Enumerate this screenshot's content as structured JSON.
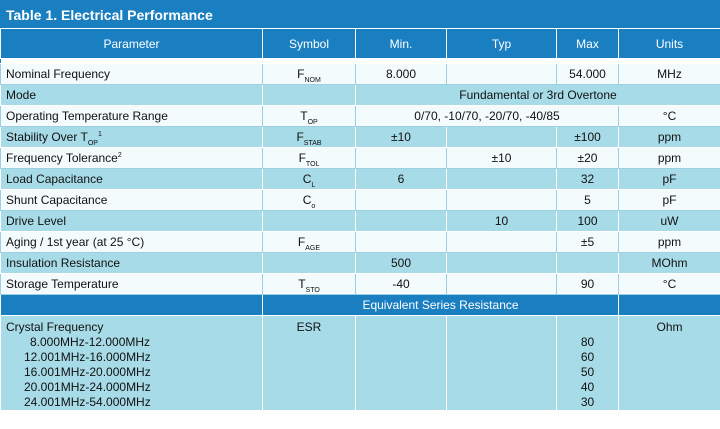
{
  "title": "Table 1. Electrical Performance",
  "headers": [
    "Parameter",
    "Symbol",
    "Min.",
    "Typ",
    "Max",
    "Units"
  ],
  "rows": [
    {
      "param": "Nominal Frequency",
      "sym_main": "F",
      "sym_sub": "NOM",
      "min": "8.000",
      "typ": "",
      "max": "54.000",
      "units": "MHz"
    },
    {
      "param": "Mode",
      "span": "Fundamental or 3rd Overtone"
    },
    {
      "param": "Operating Temperature Range",
      "sym_main": "T",
      "sym_sub": "OP",
      "span": "0/70, -10/70, -20/70, -40/85",
      "units": "°C"
    },
    {
      "param": "Stability Over T",
      "param_sub": "OP",
      "param_sup": "1",
      "sym_main": "F",
      "sym_sub": "STAB",
      "min": "±10",
      "typ": "",
      "max": "±100",
      "units": "ppm"
    },
    {
      "param": "Frequency Tolerance",
      "param_sup": "2",
      "sym_main": "F",
      "sym_sub": "TOL",
      "min": "",
      "typ": "±10",
      "max": "±20",
      "units": "ppm"
    },
    {
      "param": "Load Capacitance",
      "sym_main": "C",
      "sym_sub": "L",
      "min": "6",
      "typ": "",
      "max": "32",
      "units": "pF"
    },
    {
      "param": "Shunt Capacitance",
      "sym_main": "C",
      "sym_sub": "o",
      "min": "",
      "typ": "",
      "max": "5",
      "units": "pF"
    },
    {
      "param": "Drive Level",
      "sym_main": "",
      "sym_sub": "",
      "min": "",
      "typ": "10",
      "max": "100",
      "units": "uW"
    },
    {
      "param": "Aging / 1st year (at 25 °C)",
      "sym_main": "F",
      "sym_sub": "AGE",
      "min": "",
      "typ": "",
      "max": "±5",
      "units": "ppm"
    },
    {
      "param": "Insulation Resistance",
      "sym_main": "",
      "sym_sub": "",
      "min": "500",
      "typ": "",
      "max": "",
      "units": "MOhm"
    },
    {
      "param": "Storage Temperature",
      "sym_main": "T",
      "sym_sub": "STO",
      "min": "-40",
      "typ": "",
      "max": "90",
      "units": "°C"
    }
  ],
  "esr": {
    "section_title": "Equivalent Series Resistance",
    "param_label": "Crystal Frequency",
    "symbol": "ESR",
    "units": "Ohm",
    "ranges": [
      "8.000MHz-12.000MHz",
      "12.001MHz-16.000MHz",
      "16.001MHz-20.000MHz",
      "20.001MHz-24.000MHz",
      "24.001MHz-54.000MHz"
    ],
    "values": [
      "80",
      "60",
      "50",
      "40",
      "30"
    ]
  },
  "colors": {
    "header_blue": "#1a7fc1",
    "row_dark": "#a8dbe8",
    "row_light": "#f3fbfd"
  }
}
